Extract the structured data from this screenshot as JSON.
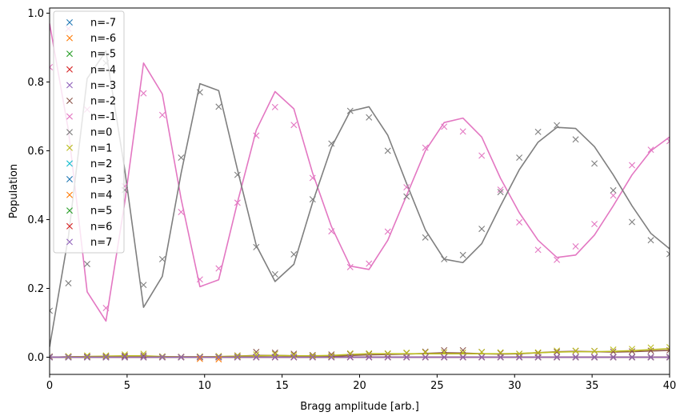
{
  "chart_data": {
    "type": "line",
    "title": "",
    "xlabel": "Bragg amplitude [arb.]",
    "ylabel": "Population",
    "xlim": [
      0,
      40
    ],
    "ylim": [
      -0.05,
      1.015
    ],
    "xticks": [
      0,
      5,
      10,
      15,
      20,
      25,
      30,
      35,
      40
    ],
    "yticks": [
      0.0,
      0.2,
      0.4,
      0.6,
      0.8,
      1.0
    ],
    "xtick_labels": [
      "0",
      "5",
      "10",
      "15",
      "20",
      "25",
      "30",
      "35",
      "40"
    ],
    "ytick_labels": [
      "0.0",
      "0.2",
      "0.4",
      "0.6",
      "0.8",
      "1.0"
    ],
    "grid": false,
    "legend_position": "upper-left",
    "x": [
      0,
      1.212,
      2.424,
      3.636,
      4.848,
      6.061,
      7.273,
      8.485,
      9.697,
      10.909,
      12.121,
      13.333,
      14.545,
      15.758,
      16.97,
      18.182,
      19.394,
      20.606,
      21.818,
      23.03,
      24.242,
      25.455,
      26.667,
      27.879,
      29.091,
      30.303,
      31.515,
      32.727,
      33.939,
      35.152,
      36.364,
      37.576,
      38.788,
      40.0
    ],
    "series": [
      {
        "name": "n=-7",
        "color": "#1f77b4",
        "marker": "x",
        "scatter": [
          0,
          0,
          0,
          0,
          0,
          0,
          0,
          0,
          0,
          0,
          0,
          0,
          0,
          0,
          0,
          0,
          0,
          0,
          0,
          0,
          0,
          0,
          0,
          0,
          0,
          0,
          0,
          0,
          0,
          0,
          0,
          0,
          0,
          0
        ],
        "line": [
          0,
          0,
          0,
          0,
          0,
          0,
          0,
          0,
          0,
          0,
          0,
          0,
          0,
          0,
          0,
          0,
          0,
          0,
          0,
          0,
          0,
          0,
          0,
          0,
          0,
          0,
          0,
          0,
          0,
          0,
          0,
          0,
          0,
          0
        ]
      },
      {
        "name": "n=-6",
        "color": "#ff7f0e",
        "marker": "x",
        "scatter": [
          0,
          0,
          0,
          0,
          0,
          0,
          0,
          0,
          0,
          0,
          0,
          0,
          0,
          0,
          0,
          0,
          0,
          0,
          0,
          0,
          0,
          0,
          0,
          0,
          0,
          0,
          0,
          0,
          0,
          0,
          0,
          0,
          0,
          0
        ],
        "line": [
          0,
          0,
          0,
          0,
          0,
          0,
          0,
          0,
          0,
          0,
          0,
          0,
          0,
          0,
          0,
          0,
          0,
          0,
          0,
          0,
          0,
          0,
          0,
          0,
          0,
          0,
          0,
          0,
          0,
          0,
          0,
          0,
          0,
          0
        ]
      },
      {
        "name": "n=-5",
        "color": "#2ca02c",
        "marker": "x",
        "scatter": [
          0,
          0,
          0,
          0,
          0,
          0,
          0,
          0,
          0,
          0,
          0,
          0,
          0,
          0,
          0,
          0,
          0,
          0,
          0,
          0,
          0,
          0,
          0,
          0,
          0,
          0,
          0,
          0,
          0,
          0,
          0,
          0,
          0,
          0
        ],
        "line": [
          0,
          0,
          0,
          0,
          0,
          0,
          0,
          0,
          0,
          0,
          0,
          0,
          0,
          0,
          0,
          0,
          0,
          0,
          0,
          0,
          0,
          0,
          0,
          0,
          0,
          0,
          0,
          0,
          0,
          0,
          0,
          0,
          0,
          0
        ]
      },
      {
        "name": "n=-4",
        "color": "#d62728",
        "marker": "x",
        "scatter": [
          0,
          0,
          0,
          0,
          0,
          0,
          0,
          0,
          0,
          0,
          0,
          0,
          0,
          0,
          0,
          0,
          0,
          0,
          0,
          0,
          0,
          0,
          0,
          0,
          0,
          0,
          0,
          0,
          0,
          0,
          0,
          0,
          0,
          0
        ],
        "line": [
          0,
          0,
          0,
          0,
          0,
          0,
          0,
          0,
          0,
          0,
          0,
          0,
          0,
          0,
          0,
          0,
          0,
          0,
          0,
          0,
          0,
          0,
          0,
          0,
          0,
          0,
          0,
          0,
          0,
          0,
          0,
          0,
          0,
          0
        ]
      },
      {
        "name": "n=-3",
        "color": "#9467bd",
        "marker": "x",
        "scatter": [
          0,
          0,
          0,
          0,
          0,
          0,
          0,
          0,
          0,
          0,
          0,
          0,
          0,
          0,
          0,
          0,
          0,
          0,
          0,
          0,
          0,
          0,
          0,
          0,
          0,
          0,
          0,
          0,
          0,
          0,
          0,
          0,
          0,
          0
        ],
        "line": [
          0,
          0,
          0,
          0,
          0,
          0,
          0,
          0,
          0,
          0,
          0,
          0,
          0,
          0,
          0,
          0,
          0,
          0,
          0,
          0,
          0,
          0,
          0,
          0,
          0,
          0,
          0,
          0,
          0,
          0,
          0,
          0,
          0,
          0
        ]
      },
      {
        "name": "n=-2",
        "color": "#8c564b",
        "marker": "x",
        "scatter": [
          0.002,
          0.002,
          0.002,
          0.003,
          0.004,
          0.005,
          0.002,
          0.001,
          0.001,
          0.003,
          0.005,
          0.015,
          0.013,
          0.01,
          0.006,
          0.008,
          0.009,
          0.009,
          0.01,
          0.012,
          0.016,
          0.02,
          0.02,
          0.015,
          0.012,
          0.01,
          0.012,
          0.015,
          0.018,
          0.018,
          0.016,
          0.017,
          0.019,
          0.02
        ],
        "line": [
          0,
          0.001,
          0.002,
          0.002,
          0.002,
          0.002,
          0.001,
          0.001,
          0.001,
          0.001,
          0.003,
          0.005,
          0.005,
          0.004,
          0.003,
          0.003,
          0.005,
          0.007,
          0.008,
          0.009,
          0.011,
          0.013,
          0.012,
          0.01,
          0.009,
          0.01,
          0.013,
          0.016,
          0.017,
          0.016,
          0.015,
          0.016,
          0.018,
          0.02
        ]
      },
      {
        "name": "n=-1",
        "color": "#e377c2",
        "marker": "x",
        "scatter": [
          0.843,
          0.955,
          0.72,
          0.143,
          0.497,
          0.767,
          0.704,
          0.422,
          0.226,
          0.258,
          0.449,
          0.644,
          0.727,
          0.675,
          0.521,
          0.366,
          0.262,
          0.272,
          0.365,
          0.494,
          0.609,
          0.67,
          0.656,
          0.586,
          0.487,
          0.392,
          0.312,
          0.283,
          0.322,
          0.387,
          0.47,
          0.558,
          0.603,
          0.628
        ],
        "line": [
          0.97,
          0.66,
          0.19,
          0.105,
          0.45,
          0.855,
          0.765,
          0.46,
          0.205,
          0.225,
          0.45,
          0.66,
          0.772,
          0.722,
          0.535,
          0.38,
          0.265,
          0.255,
          0.34,
          0.47,
          0.6,
          0.682,
          0.695,
          0.64,
          0.52,
          0.42,
          0.34,
          0.29,
          0.297,
          0.355,
          0.44,
          0.53,
          0.6,
          0.64
        ]
      },
      {
        "name": "n=0",
        "color": "#7f7f7f",
        "marker": "x",
        "scatter": [
          0.135,
          0.215,
          0.271,
          0.855,
          0.486,
          0.21,
          0.285,
          0.58,
          0.77,
          0.728,
          0.53,
          0.32,
          0.241,
          0.299,
          0.459,
          0.621,
          0.716,
          0.697,
          0.6,
          0.467,
          0.348,
          0.285,
          0.297,
          0.373,
          0.48,
          0.58,
          0.655,
          0.674,
          0.633,
          0.563,
          0.485,
          0.393,
          0.34,
          0.3
        ],
        "line": [
          0.03,
          0.35,
          0.81,
          0.89,
          0.545,
          0.145,
          0.235,
          0.535,
          0.795,
          0.775,
          0.545,
          0.325,
          0.22,
          0.27,
          0.45,
          0.61,
          0.715,
          0.728,
          0.645,
          0.505,
          0.37,
          0.285,
          0.275,
          0.33,
          0.44,
          0.545,
          0.625,
          0.668,
          0.665,
          0.612,
          0.53,
          0.44,
          0.36,
          0.315
        ]
      },
      {
        "name": "n=1",
        "color": "#bcbd22",
        "marker": "x",
        "scatter": [
          0.001,
          0.003,
          0.005,
          0.005,
          0.008,
          0.01,
          0.002,
          0.001,
          0.002,
          0.003,
          0.004,
          0.008,
          0.009,
          0.006,
          0.004,
          0.004,
          0.011,
          0.011,
          0.011,
          0.013,
          0.014,
          0.014,
          0.013,
          0.015,
          0.014,
          0.01,
          0.014,
          0.019,
          0.019,
          0.018,
          0.022,
          0.024,
          0.028,
          0.029
        ],
        "line": [
          0,
          0.001,
          0.002,
          0.003,
          0.004,
          0.004,
          0.002,
          0.001,
          0.001,
          0.002,
          0.003,
          0.004,
          0.005,
          0.004,
          0.004,
          0.005,
          0.008,
          0.01,
          0.01,
          0.01,
          0.01,
          0.01,
          0.01,
          0.01,
          0.01,
          0.011,
          0.013,
          0.015,
          0.016,
          0.016,
          0.017,
          0.019,
          0.022,
          0.025
        ]
      },
      {
        "name": "n=2",
        "color": "#17becf",
        "marker": "x",
        "scatter": [
          0,
          0,
          0,
          0,
          0,
          0,
          0,
          0,
          0,
          0,
          0,
          0,
          0,
          0,
          0,
          0,
          0,
          0,
          0,
          0,
          0,
          0,
          0,
          0,
          0,
          0,
          0,
          0,
          0,
          0,
          0,
          0,
          0,
          0
        ],
        "line": [
          0,
          0,
          0,
          0,
          0,
          0,
          0,
          0,
          0,
          0,
          0,
          0,
          0,
          0,
          0,
          0,
          0,
          0,
          0,
          0,
          0,
          0,
          0,
          0,
          0,
          0,
          0,
          0,
          0,
          0,
          0,
          0,
          0,
          0
        ]
      },
      {
        "name": "n=3",
        "color": "#1f77b4",
        "marker": "x",
        "scatter": [
          0,
          0,
          0,
          0,
          0,
          0,
          0,
          0,
          0,
          0,
          0,
          0,
          0,
          0,
          0,
          0,
          0,
          0,
          0,
          0,
          0,
          0,
          0,
          0,
          0,
          0,
          0,
          0,
          0,
          0,
          0,
          0,
          0,
          0
        ],
        "line": [
          0,
          0,
          0,
          0,
          0,
          0,
          0,
          0,
          0,
          0,
          0,
          0,
          0,
          0,
          0,
          0,
          0,
          0,
          0,
          0,
          0,
          0,
          0,
          0,
          0,
          0,
          0,
          0,
          0,
          0,
          0,
          0,
          0,
          0
        ]
      },
      {
        "name": "n=4",
        "color": "#ff7f0e",
        "marker": "x",
        "scatter": [
          0,
          0,
          0,
          0,
          0,
          0,
          0,
          0,
          -0.005,
          -0.006,
          0,
          0,
          0,
          0,
          0,
          0,
          0,
          0,
          0,
          0,
          0,
          0,
          0,
          0,
          0,
          0,
          0,
          0,
          0,
          0,
          0,
          0,
          0,
          0
        ],
        "line": [
          0,
          0,
          0,
          0,
          0,
          0,
          0,
          0,
          0,
          0,
          0,
          0,
          0,
          0,
          0,
          0,
          0,
          0,
          0,
          0,
          0,
          0,
          0,
          0,
          0,
          0,
          0,
          0,
          0,
          0,
          0,
          0,
          0,
          0
        ]
      },
      {
        "name": "n=5",
        "color": "#2ca02c",
        "marker": "x",
        "scatter": [
          0,
          0,
          0,
          0,
          0,
          0,
          0,
          0,
          0,
          0,
          0,
          0,
          0,
          0,
          0,
          0,
          0,
          0,
          0,
          0,
          0,
          0,
          0,
          0,
          0,
          0,
          0,
          0,
          0,
          0,
          0,
          0,
          0,
          0
        ],
        "line": [
          0,
          0,
          0,
          0,
          0,
          0,
          0,
          0,
          0,
          0,
          0,
          0,
          0,
          0,
          0,
          0,
          0,
          0,
          0,
          0,
          0,
          0,
          0,
          0,
          0,
          0,
          0,
          0,
          0,
          0,
          0,
          0,
          0,
          0
        ]
      },
      {
        "name": "n=6",
        "color": "#d62728",
        "marker": "x",
        "scatter": [
          0,
          0,
          0,
          0,
          0,
          0,
          0,
          0,
          0,
          0,
          0,
          0,
          0,
          0,
          0,
          0,
          0,
          0,
          0,
          0,
          0,
          0,
          0,
          0,
          0,
          0,
          0,
          0,
          0,
          0,
          0,
          0,
          0,
          0
        ],
        "line": [
          0,
          0,
          0,
          0,
          0,
          0,
          0,
          0,
          0,
          0,
          0,
          0,
          0,
          0,
          0,
          0,
          0,
          0,
          0,
          0,
          0,
          0,
          0,
          0,
          0,
          0,
          0,
          0,
          0,
          0,
          0,
          0,
          0,
          0
        ]
      },
      {
        "name": "n=7",
        "color": "#9467bd",
        "marker": "x",
        "scatter": [
          0,
          0,
          0,
          0,
          0,
          0,
          0,
          0,
          0,
          0,
          0,
          0,
          0,
          0,
          0,
          0,
          0,
          0,
          0,
          0,
          0,
          0,
          0,
          0,
          0,
          0,
          0,
          0,
          0,
          0,
          0,
          0,
          0,
          0
        ],
        "line": [
          0,
          0,
          0,
          0,
          0,
          0,
          0,
          0,
          0,
          0,
          0,
          0,
          0,
          0,
          0,
          0,
          0,
          0,
          0,
          0,
          0,
          0,
          0,
          0,
          0,
          0,
          0,
          0,
          0,
          0,
          0,
          0,
          0,
          0
        ]
      }
    ]
  }
}
